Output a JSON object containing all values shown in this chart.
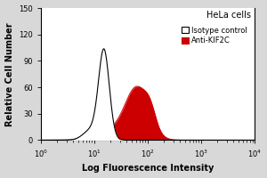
{
  "title": "HeLa cells",
  "xlabel": "Log Fluorescence Intensity",
  "ylabel": "Relative Cell Number",
  "xlim": [
    1,
    10000
  ],
  "ylim": [
    0,
    150
  ],
  "yticks": [
    0,
    30,
    60,
    90,
    120,
    150
  ],
  "background_color": "#d8d8d8",
  "plot_bg_color": "#ffffff",
  "isotype_color": "#000000",
  "anti_color": "#cc0000",
  "anti_fill": "#cc0000",
  "legend_labels": [
    "Isotype control",
    "Anti-KIF2C"
  ],
  "figsize": [
    3.0,
    2.0
  ],
  "dpi": 100
}
